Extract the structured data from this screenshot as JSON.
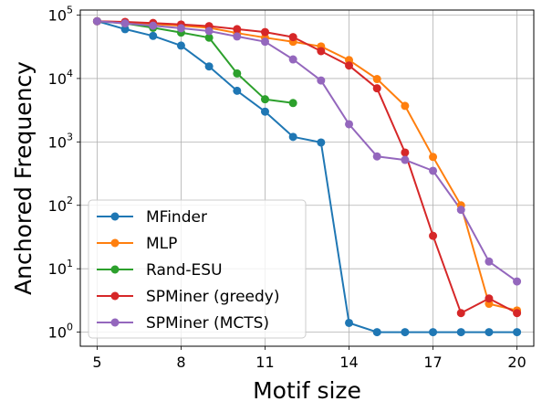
{
  "chart_data": {
    "type": "line",
    "title": "",
    "xlabel": "Motif size",
    "ylabel": "Anchored Frequency",
    "xlim": [
      4.4,
      20.6
    ],
    "ylim": [
      0.6,
      120000
    ],
    "yscale": "log",
    "grid": true,
    "legend_position": "lower-left",
    "xticks": [
      5,
      8,
      11,
      14,
      17,
      20
    ],
    "xtick_labels": [
      "5",
      "8",
      "11",
      "14",
      "17",
      "20"
    ],
    "yticks": [
      1,
      10,
      100,
      1000,
      10000,
      100000
    ],
    "ytick_labels": [
      {
        "base": "10",
        "exp": "0"
      },
      {
        "base": "10",
        "exp": "1"
      },
      {
        "base": "10",
        "exp": "2"
      },
      {
        "base": "10",
        "exp": "3"
      },
      {
        "base": "10",
        "exp": "4"
      },
      {
        "base": "10",
        "exp": "5"
      }
    ],
    "series": [
      {
        "name": "MFinder",
        "color": "#1f77b4",
        "x": [
          5,
          6,
          7,
          8,
          9,
          10,
          11,
          12,
          13,
          14,
          15,
          16,
          17,
          18,
          19,
          20
        ],
        "y": [
          80000,
          60000,
          47000,
          33000,
          15500,
          6400,
          3000,
          1200,
          980,
          1.4,
          1.0,
          1.0,
          1.0,
          1.0,
          1.0,
          1.0
        ]
      },
      {
        "name": "MLP",
        "color": "#ff7f0e",
        "x": [
          5,
          6,
          7,
          8,
          9,
          10,
          11,
          12,
          13,
          14,
          15,
          16,
          17,
          18,
          19,
          20
        ],
        "y": [
          80000,
          76000,
          72000,
          68000,
          63000,
          52000,
          44000,
          38000,
          32000,
          19500,
          9800,
          3700,
          580,
          100,
          2.8,
          2.2
        ]
      },
      {
        "name": "Rand-ESU",
        "color": "#2ca02c",
        "x": [
          5,
          6,
          7,
          8,
          9,
          10,
          11,
          12
        ],
        "y": [
          80000,
          74000,
          63000,
          53000,
          44000,
          12000,
          4700,
          4100
        ]
      },
      {
        "name": "SPMiner (greedy)",
        "color": "#d62728",
        "x": [
          5,
          6,
          7,
          8,
          9,
          10,
          11,
          12,
          13,
          14,
          15,
          16,
          17,
          18,
          19,
          20
        ],
        "y": [
          80000,
          78000,
          75000,
          71000,
          67000,
          60000,
          54000,
          45000,
          27000,
          16000,
          7000,
          680,
          33,
          2.0,
          3.4,
          2.0
        ]
      },
      {
        "name": "SPMiner (MCTS)",
        "color": "#9467bd",
        "x": [
          5,
          6,
          7,
          8,
          9,
          10,
          11,
          12,
          13,
          14,
          15,
          16,
          17,
          18,
          19,
          20
        ],
        "y": [
          80000,
          74000,
          68000,
          62000,
          56000,
          46000,
          38000,
          20000,
          9300,
          1900,
          590,
          520,
          350,
          85,
          13,
          6.3
        ]
      }
    ]
  }
}
